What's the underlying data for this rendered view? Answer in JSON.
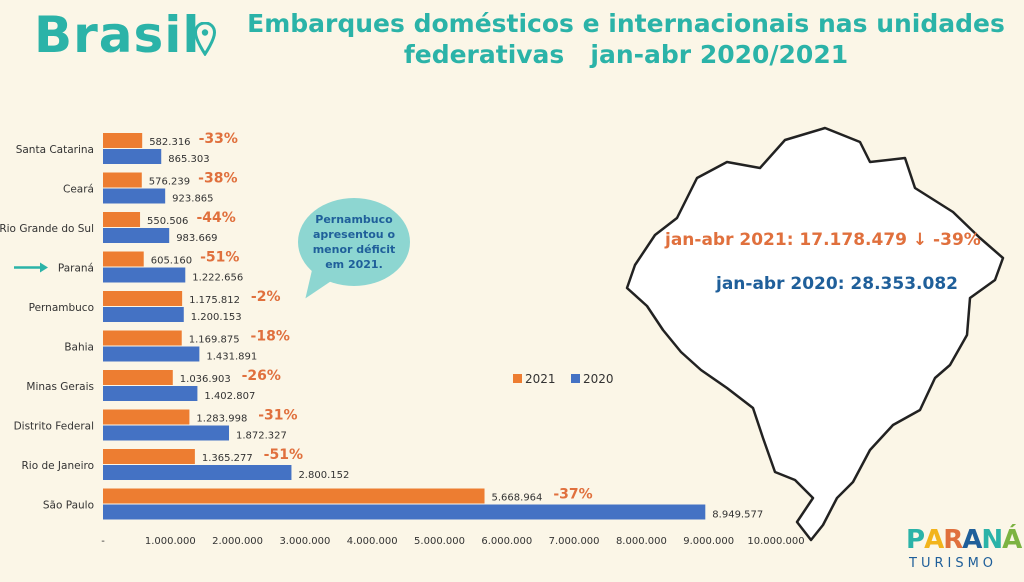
{
  "header": {
    "brand": "Brasil",
    "title_line1": "Embarques domésticos e internacionais nas unidades",
    "title_line2": "federativas   jan-abr 2020/2021"
  },
  "colors": {
    "s2021": "#ed7d31",
    "s2020": "#4472c4",
    "pct": "#e0703d",
    "teal": "#2bb3a8",
    "navy": "#1f5f9a"
  },
  "chart_data": {
    "type": "bar",
    "orientation": "horizontal",
    "categories": [
      "Santa Catarina",
      "Ceará",
      "Rio Grande do Sul",
      "Paraná",
      "Pernambuco",
      "Bahia",
      "Minas Gerais",
      "Distrito Federal",
      "Rio de Janeiro",
      "São Paulo"
    ],
    "series": [
      {
        "name": "2021",
        "values": [
          582316,
          576239,
          550506,
          605160,
          1175812,
          1169875,
          1036903,
          1283998,
          1365277,
          5668964
        ],
        "labels": [
          "582.316",
          "576.239",
          "550.506",
          "605.160",
          "1.175.812",
          "1.169.875",
          "1.036.903",
          "1.283.998",
          "1.365.277",
          "5.668.964"
        ]
      },
      {
        "name": "2020",
        "values": [
          865303,
          923865,
          983669,
          1222656,
          1200153,
          1431891,
          1402807,
          1872327,
          2800152,
          8949577
        ],
        "labels": [
          "865.303",
          "923.865",
          "983.669",
          "1.222.656",
          "1.200.153",
          "1.431.891",
          "1.402.807",
          "1.872.327",
          "2.800.152",
          "8.949.577"
        ]
      }
    ],
    "changes": [
      "-33%",
      "-38%",
      "-44%",
      "-51%",
      "-2%",
      "-18%",
      "-26%",
      "-31%",
      "-51%",
      "-37%"
    ],
    "highlighted_category": "Paraná",
    "xlim": [
      0,
      10000000
    ],
    "xticks": [
      "-",
      "1.000.000",
      "2.000.000",
      "3.000.000",
      "4.000.000",
      "5.000.000",
      "6.000.000",
      "7.000.000",
      "8.000.000",
      "9.000.000",
      "10.000.000"
    ],
    "legend": [
      "2021",
      "2020"
    ],
    "grid": false
  },
  "callout": {
    "text": "Pernambuco apresentou o menor déficit em 2021."
  },
  "totals": {
    "y2021": "jan-abr 2021: 17.178.479 ↓ -39%",
    "y2020": "jan-abr 2020: 28.353.082"
  },
  "logo": {
    "letters": [
      "P",
      "A",
      "R",
      "A",
      "N",
      "Á"
    ],
    "letter_colors": [
      "#2bb3a8",
      "#f2b41b",
      "#e0703d",
      "#1f5f9a",
      "#2bb3a8",
      "#7cb342"
    ],
    "subtitle": "TURISMO"
  }
}
